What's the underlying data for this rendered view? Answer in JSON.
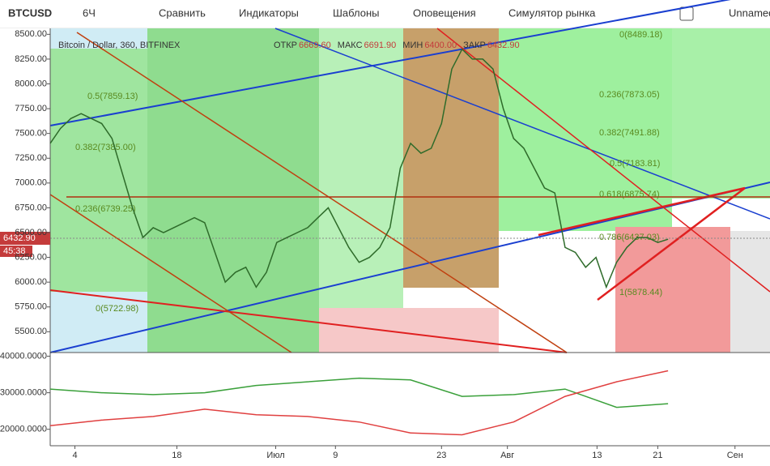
{
  "toolbar": {
    "symbol": "BTCUSD",
    "interval": "6Ч",
    "items": [
      "Сравнить",
      "Индикаторы",
      "Шаблоны",
      "Оповещения",
      "Симулятор рынка"
    ],
    "layout": "Unnamed"
  },
  "legend": {
    "title": "Bitcoin / Dollar, 360, BITFINEX",
    "fields": [
      {
        "label": "ОТКР",
        "value": "6669.60"
      },
      {
        "label": "МАКС",
        "value": "6691.90"
      },
      {
        "label": "МИН",
        "value": "6400.00"
      },
      {
        "label": "ЗАКР",
        "value": "6432.90"
      }
    ]
  },
  "price_badge": "6432.90",
  "timer": "45:38",
  "annotations": [
    "0.5(7859.13)",
    "0.382(7385.00)",
    "0.236(6739.25)",
    "0(5722.98)",
    "0(8489.18)",
    "0.236(7873.05)",
    "0.382(7491.88)",
    "0.5(7183.81)",
    "0.618(6875.74)",
    "0.786(6437.03)",
    "1(5878.44)"
  ],
  "chart_data": [
    {
      "type": "line",
      "xlim": [
        0,
        69.9
      ],
      "ylim": [
        5290,
        8560
      ],
      "xticks": [
        {
          "value": 2.4,
          "label": "4"
        },
        {
          "value": 12.3,
          "label": "18"
        },
        {
          "value": 21.9,
          "label": "Июл"
        },
        {
          "value": 27.7,
          "label": "9"
        },
        {
          "value": 38,
          "label": "23"
        },
        {
          "value": 44.4,
          "label": "Авг"
        },
        {
          "value": 53.1,
          "label": "13"
        },
        {
          "value": 59,
          "label": "21"
        },
        {
          "value": 66.5,
          "label": "Сен"
        }
      ],
      "yticks": [
        {
          "value": 5500,
          "label": "5500.00"
        },
        {
          "value": 5750,
          "label": "5750.00"
        },
        {
          "value": 6000,
          "label": "6000.00"
        },
        {
          "value": 6250,
          "label": "6250.00"
        },
        {
          "value": 6500,
          "label": "6500.00"
        },
        {
          "value": 6750,
          "label": "6750.00"
        },
        {
          "value": 7000,
          "label": "7000.00"
        },
        {
          "value": 7250,
          "label": "7250.00"
        },
        {
          "value": 7500,
          "label": "7500.00"
        },
        {
          "value": 7750,
          "label": "7750.00"
        },
        {
          "value": 8000,
          "label": "8000.00"
        },
        {
          "value": 8250,
          "label": "8250.00"
        },
        {
          "value": 8500,
          "label": "8500.00"
        }
      ],
      "series": [
        {
          "name": "BTCUSD",
          "color": "#2e6b2a",
          "values": [
            7400,
            7550,
            7650,
            7700,
            7650,
            7600,
            7450,
            7100,
            6750,
            6450,
            6550,
            6500,
            6550,
            6600,
            6650,
            6600,
            6300,
            6000,
            6100,
            6150,
            5950,
            6100,
            6400,
            6450,
            6500,
            6550,
            6650,
            6750,
            6550,
            6350,
            6200,
            6250,
            6350,
            6550,
            7150,
            7400,
            7300,
            7350,
            7600,
            8150,
            8350,
            8250,
            8250,
            8150,
            7750,
            7450,
            7350,
            7150,
            6950,
            6900,
            6350,
            6300,
            6150,
            6250,
            5950,
            6200,
            6350,
            6450,
            6450,
            6400,
            6432.9
          ]
        }
      ]
    },
    {
      "type": "line",
      "xlim": [
        0,
        69.9
      ],
      "ylim": [
        15500,
        41000
      ],
      "yticks": [
        {
          "value": 20000,
          "label": "20000.0000"
        },
        {
          "value": 30000,
          "label": "30000.0000"
        },
        {
          "value": 40000,
          "label": "40000.0000"
        }
      ],
      "series": [
        {
          "name": "green",
          "color": "#3aa03a",
          "x": [
            0,
            5,
            10,
            15,
            20,
            25,
            30,
            35,
            40,
            45,
            50,
            55,
            60
          ],
          "values": [
            31000,
            30000,
            29500,
            30000,
            32000,
            33000,
            34000,
            33500,
            29000,
            29500,
            31000,
            26000,
            27000
          ]
        },
        {
          "name": "red",
          "color": "#e04040",
          "x": [
            0,
            5,
            10,
            15,
            20,
            25,
            30,
            35,
            40,
            45,
            50,
            55,
            60
          ],
          "values": [
            21000,
            22500,
            23500,
            25500,
            24000,
            23500,
            22000,
            19000,
            18500,
            22000,
            29000,
            33000,
            36000
          ]
        }
      ]
    }
  ]
}
